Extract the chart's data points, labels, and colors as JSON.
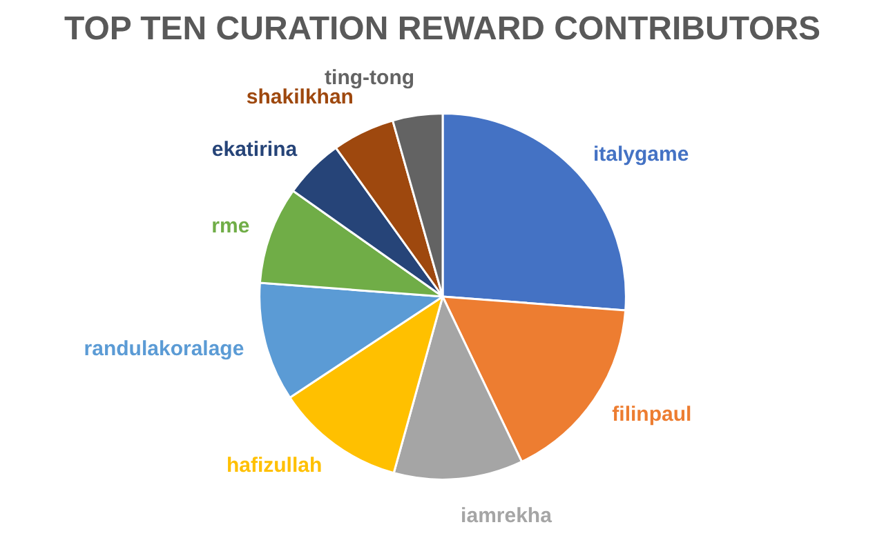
{
  "chart_data": {
    "type": "pie",
    "title": "TOP TEN CURATION REWARD CONTRIBUTORS",
    "categories": [
      "italygame",
      "filinpaul",
      "iamrekha",
      "hafizullah",
      "randulakoralage",
      "rme",
      "ekatirina",
      "shakilkhan",
      "ting-tong"
    ],
    "values": [
      26.2,
      16.7,
      11.4,
      11.4,
      10.5,
      8.6,
      5.3,
      5.5,
      4.4
    ],
    "colors": [
      "#4472c4",
      "#ed7d31",
      "#a5a5a5",
      "#ffc000",
      "#5b9bd5",
      "#70ad47",
      "#264478",
      "#9e480e",
      "#636363"
    ]
  }
}
